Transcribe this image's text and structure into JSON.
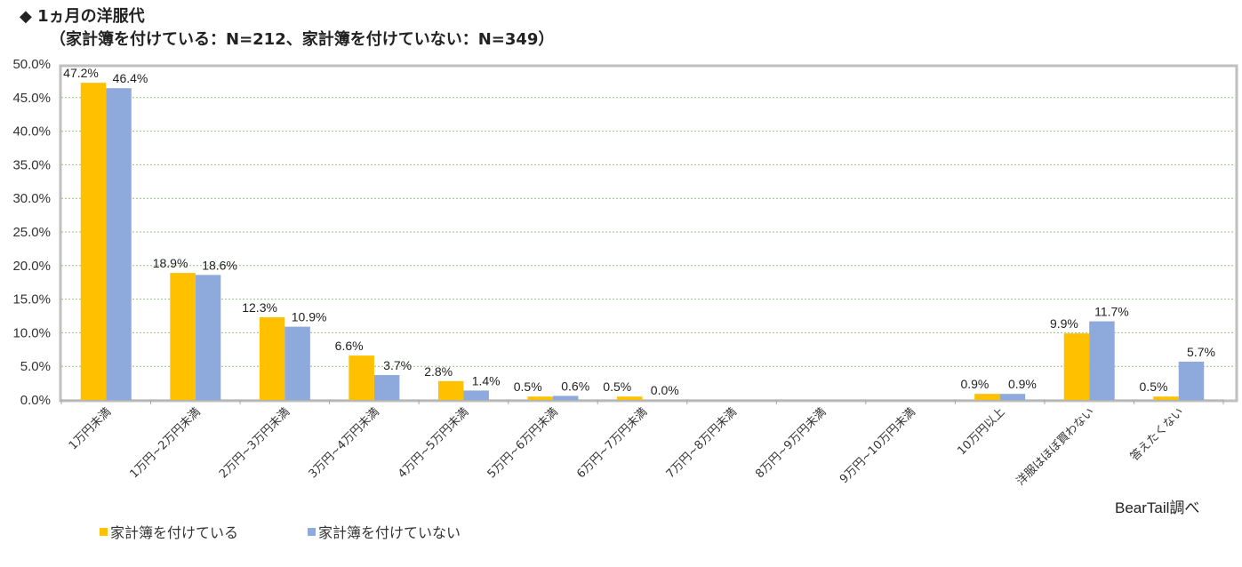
{
  "title_line1": "◆ 1ヵ月の洋服代",
  "title_line2": "（家計簿を付けている：N=212、家計簿を付けていない：N=349）",
  "source_note": "BearTail調べ",
  "colors": {
    "series1": "#FFC000",
    "series2": "#8EA9DB",
    "grid": "#92C47C",
    "frame": "#BFBFBF"
  },
  "chart_data": {
    "type": "bar",
    "categories": [
      "1万円未満",
      "1万円~2万円未満",
      "2万円~3万円未満",
      "3万円~4万円未満",
      "4万円~5万円未満",
      "5万円~6万円未満",
      "6万円~7万円未満",
      "7万円~8万円未満",
      "8万円~9万円未満",
      "9万円~10万円未満",
      "10万円以上",
      "洋服はほぼ買わない",
      "答えたくない"
    ],
    "series": [
      {
        "name": "家計簿を付けている",
        "values": [
          47.2,
          18.9,
          12.3,
          6.6,
          2.8,
          0.5,
          0.5,
          null,
          null,
          null,
          0.9,
          9.9,
          0.5
        ]
      },
      {
        "name": "家計簿を付けていない",
        "values": [
          46.4,
          18.6,
          10.9,
          3.7,
          1.4,
          0.6,
          0.0,
          null,
          null,
          null,
          0.9,
          11.7,
          5.7
        ]
      }
    ],
    "yticks": [
      "0.0%",
      "5.0%",
      "10.0%",
      "15.0%",
      "20.0%",
      "25.0%",
      "30.0%",
      "35.0%",
      "40.0%",
      "45.0%",
      "50.0%"
    ],
    "ylim": [
      0,
      50
    ],
    "grid": true,
    "legend_position": "bottom-left"
  }
}
